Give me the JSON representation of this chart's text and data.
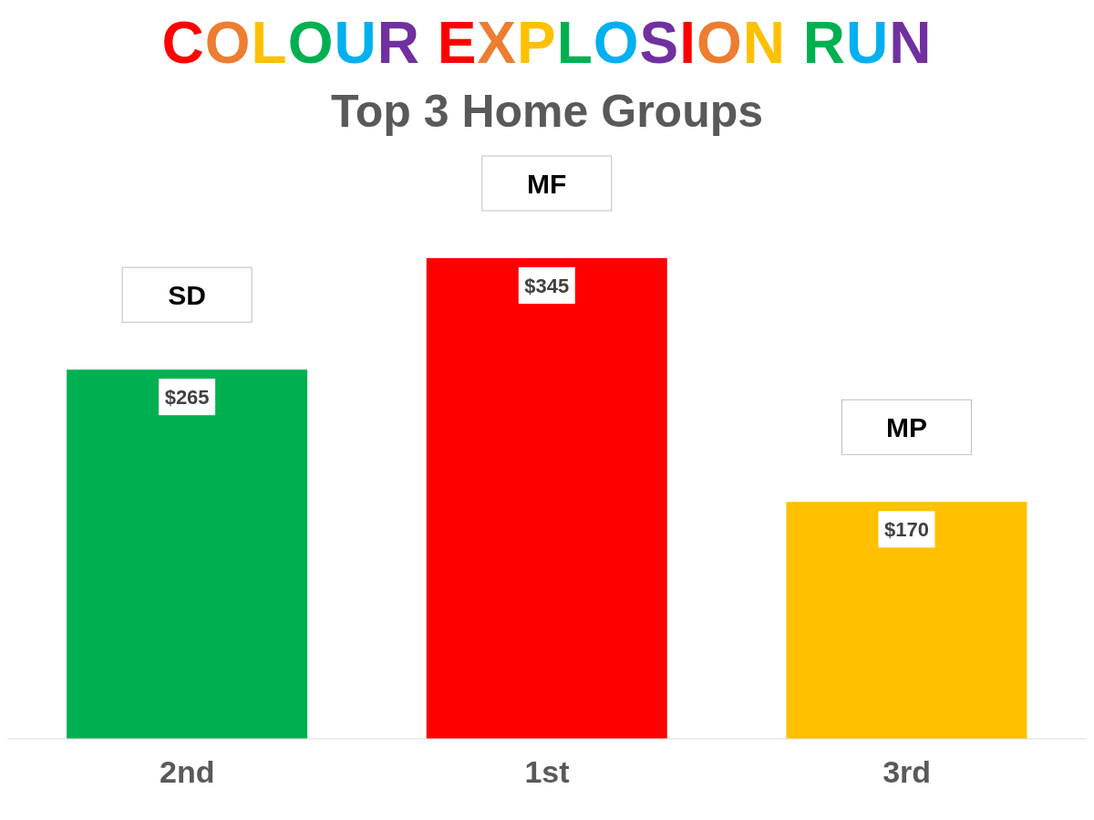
{
  "chart_data": {
    "type": "bar",
    "title": "COLOUR EXPLOSION RUN",
    "subtitle": "Top 3 Home Groups",
    "categories": [
      "2nd",
      "1st",
      "3rd"
    ],
    "values": [
      265,
      345,
      170
    ],
    "colors": [
      "#00b050",
      "#ff0000",
      "#ffc000"
    ],
    "value_labels": [
      "$265",
      "$345",
      "$170"
    ],
    "annotations": [
      "SD",
      "MF",
      "MP"
    ],
    "grid": false,
    "legend": false
  }
}
